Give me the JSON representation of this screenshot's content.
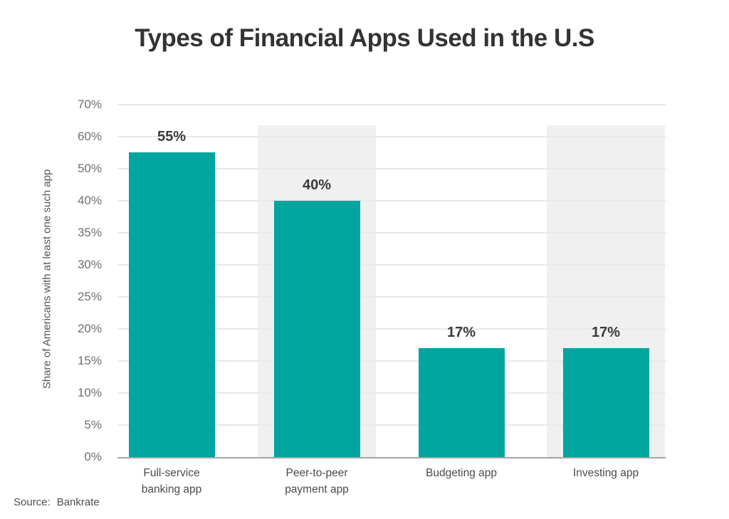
{
  "chart_data": {
    "type": "bar",
    "title": "Types of Financial Apps Used in the U.S",
    "categories": [
      "Full-service banking app",
      "Peer-to-peer payment app",
      "Budgeting app",
      "Investing app"
    ],
    "category_lines": [
      [
        "Full-service",
        "banking app"
      ],
      [
        "Peer-to-peer",
        "payment app"
      ],
      [
        "Budgeting app"
      ],
      [
        "Investing app"
      ]
    ],
    "values": [
      55,
      40,
      17,
      17
    ],
    "value_labels": [
      "55%",
      "40%",
      "17%",
      "17%"
    ],
    "xlabel": "",
    "ylabel": "Share of Americans with at least one such app",
    "yticks": [
      0,
      5,
      10,
      15,
      20,
      25,
      30,
      35,
      40,
      50,
      60,
      70
    ],
    "ytick_labels": [
      "0%",
      "5%",
      "10%",
      "15%",
      "20%",
      "25%",
      "30%",
      "35%",
      "40%",
      "50%",
      "60%",
      "70%"
    ],
    "yaxis_style": "tick marks evenly spaced; increments of 5 up to 40%, then increments of 10 up to 70%",
    "grid": true,
    "legend": false,
    "band_columns": [
      1,
      3
    ],
    "colors": {
      "bar": "#00a5a0",
      "column_band": "#f0f0f0",
      "gridline": "#e9e9e9",
      "axis_line": "#a6a6a6",
      "title": "#333333",
      "value_label": "#3a3a3a",
      "tick_label": "#6e6e6e"
    }
  },
  "source": {
    "label": "Source:",
    "value": "Bankrate"
  }
}
